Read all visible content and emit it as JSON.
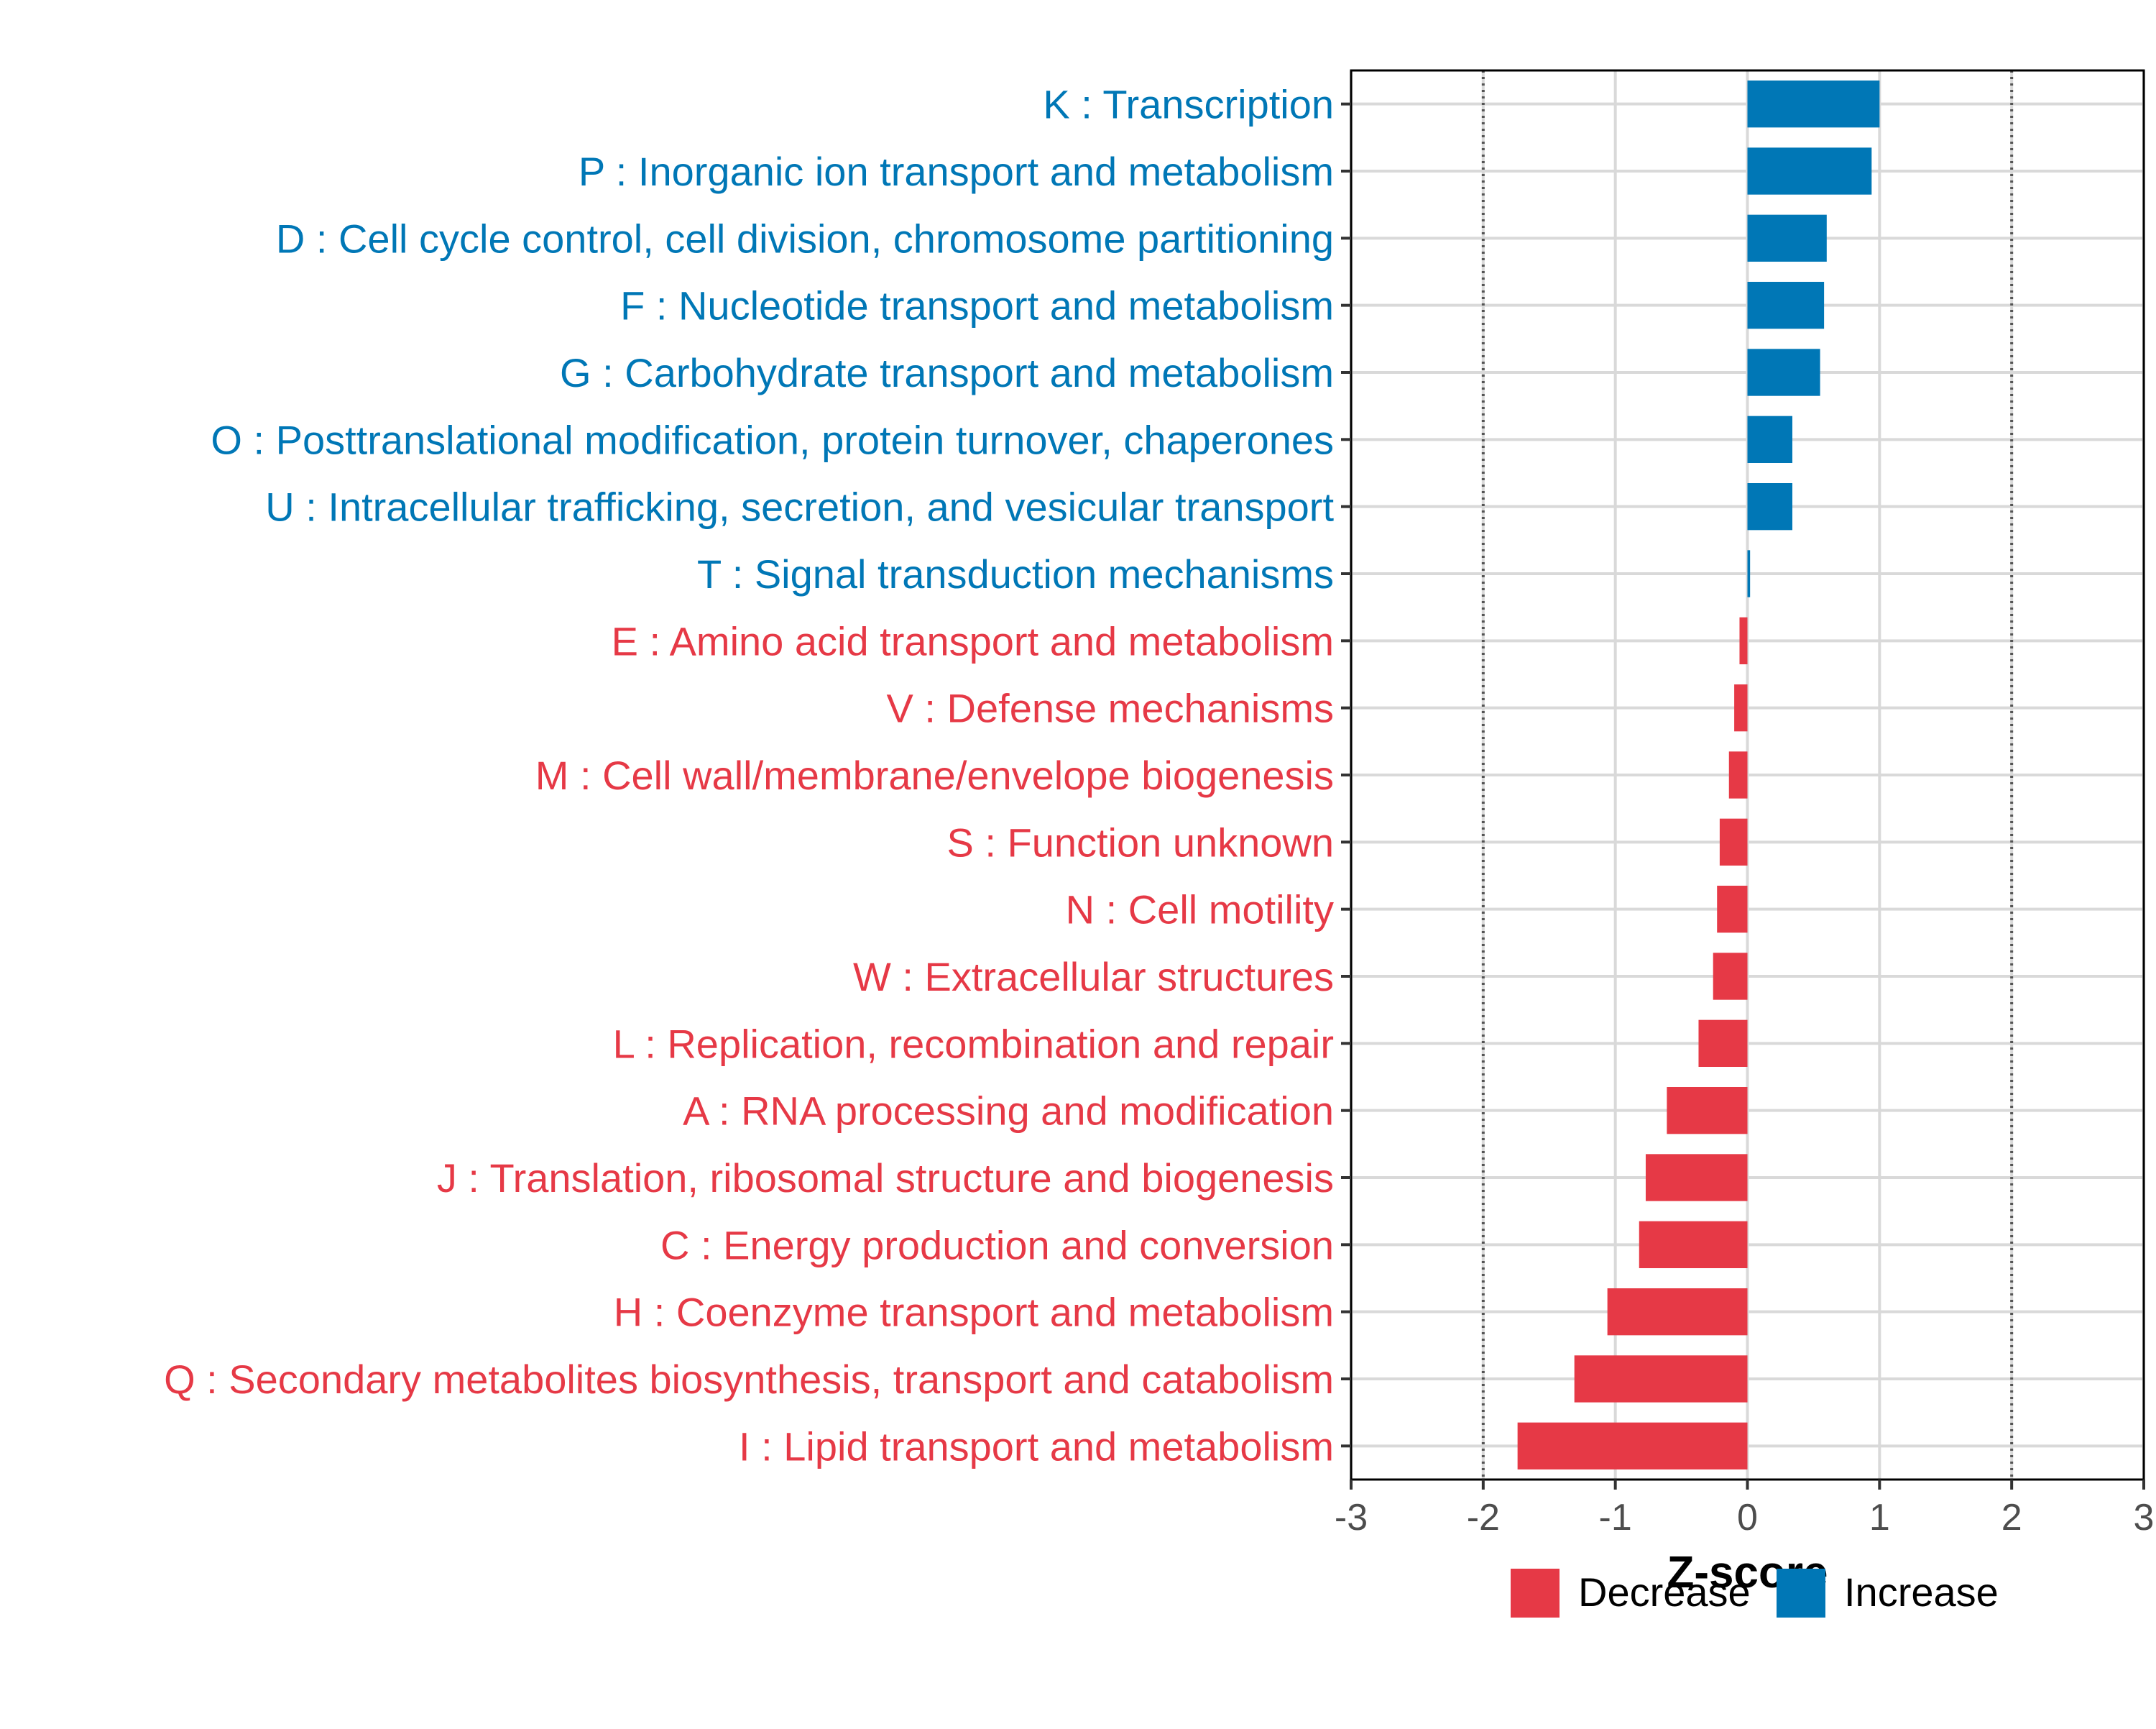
{
  "chart_data": {
    "type": "bar",
    "orientation": "horizontal",
    "title": "",
    "xlabel": "Z-score",
    "ylabel": "",
    "xlim": [
      -3,
      3
    ],
    "xticks": [
      "-3",
      "-2",
      "-1",
      "0",
      "1",
      "2",
      "3"
    ],
    "reference_lines": [
      -2,
      2
    ],
    "grid": true,
    "categories": [
      "K : Transcription",
      "P : Inorganic ion transport and metabolism",
      "D : Cell cycle control, cell division, chromosome partitioning",
      "F : Nucleotide transport and metabolism",
      "G : Carbohydrate transport and metabolism",
      "O : Posttranslational modification, protein turnover, chaperones",
      "U : Intracellular trafficking, secretion, and vesicular transport",
      "T : Signal transduction mechanisms",
      "E : Amino acid transport and metabolism",
      "V : Defense mechanisms",
      "M : Cell wall/membrane/envelope biogenesis",
      "S : Function unknown",
      "N : Cell motility",
      "W : Extracellular structures",
      "L : Replication, recombination and repair",
      "A : RNA processing and modification",
      "J : Translation, ribosomal structure and biogenesis",
      "C : Energy production and conversion",
      "H : Coenzyme transport and metabolism",
      "Q : Secondary metabolites biosynthesis, transport and catabolism",
      "I : Lipid transport and metabolism"
    ],
    "values": [
      1.0,
      0.94,
      0.6,
      0.58,
      0.55,
      0.34,
      0.34,
      0.02,
      -0.06,
      -0.1,
      -0.14,
      -0.21,
      -0.23,
      -0.26,
      -0.37,
      -0.61,
      -0.77,
      -0.82,
      -1.06,
      -1.31,
      -1.74
    ],
    "legend": {
      "position": "bottom",
      "entries": [
        {
          "label": "Decrease",
          "color": "#e63946"
        },
        {
          "label": "Increase",
          "color": "#0077b6"
        }
      ]
    }
  }
}
